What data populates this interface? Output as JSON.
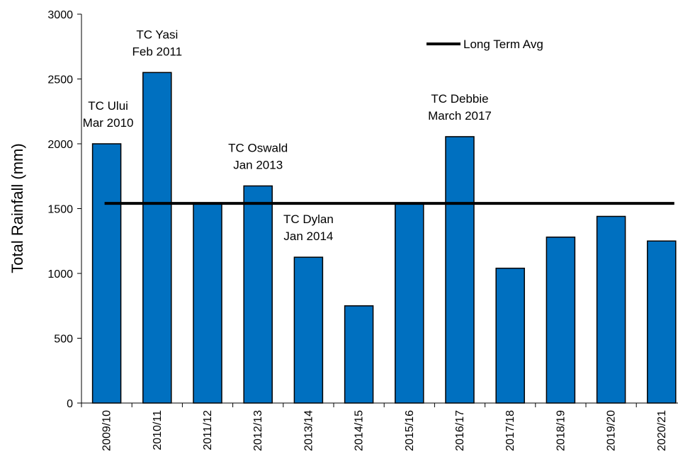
{
  "chart_data": {
    "type": "bar",
    "title": "",
    "xlabel": "",
    "ylabel": "Total Rainfall (mm)",
    "ylim": [
      0,
      3000
    ],
    "yticks": [
      0,
      500,
      1000,
      1500,
      2000,
      2500,
      3000
    ],
    "categories": [
      "2009/10",
      "2010/11",
      "2011/12",
      "2012/13",
      "2013/14",
      "2014/15",
      "2015/16",
      "2016/17",
      "2017/18",
      "2018/19",
      "2019/20",
      "2020/21"
    ],
    "values": [
      2000,
      2550,
      1545,
      1675,
      1125,
      750,
      1545,
      2055,
      1040,
      1280,
      1440,
      1250
    ],
    "bar_color": "#0070C0",
    "reference_line": {
      "name": "Long Term Avg",
      "value": 1540,
      "color": "#000000"
    },
    "legend": {
      "position": "top-right",
      "entries": [
        "Long Term Avg"
      ]
    },
    "grid": false,
    "annotations": [
      {
        "category": "2009/10",
        "lines": [
          "TC Ului",
          "Mar 2010"
        ]
      },
      {
        "category": "2010/11",
        "lines": [
          "TC Yasi",
          "Feb 2011"
        ]
      },
      {
        "category": "2012/13",
        "lines": [
          "TC Oswald",
          "Jan 2013"
        ]
      },
      {
        "category": "2013/14",
        "lines": [
          "TC Dylan",
          "Jan 2014"
        ]
      },
      {
        "category": "2016/17",
        "lines": [
          "TC Debbie",
          "March 2017"
        ]
      }
    ]
  }
}
